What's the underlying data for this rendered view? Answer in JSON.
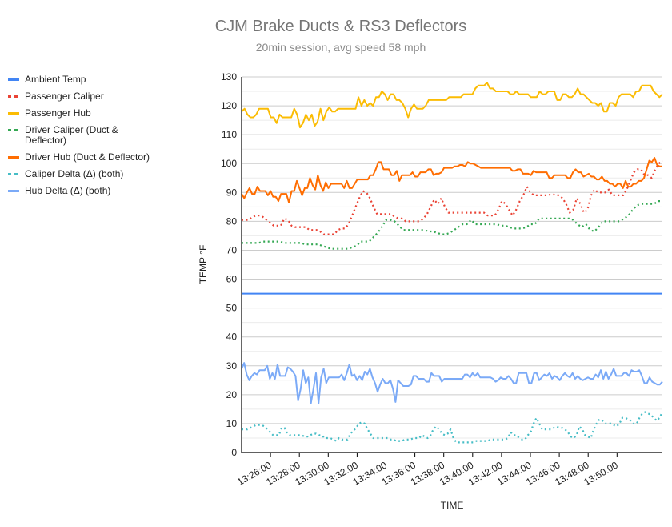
{
  "chart_data": {
    "type": "line",
    "title": "CJM Brake Ducts & RS3 Deflectors",
    "subtitle": "20min session, avg speed 58 mph",
    "xlabel": "TIME",
    "ylabel": "TEMP °F",
    "ylim": [
      0,
      130
    ],
    "yticks": [
      "0",
      "10",
      "20",
      "30",
      "40",
      "50",
      "60",
      "70",
      "80",
      "90",
      "100",
      "110",
      "120",
      "130"
    ],
    "xticks": [
      "13:26:00",
      "13:28:00",
      "13:30:00",
      "13:32:00",
      "13:34:00",
      "13:36:00",
      "13:38:00",
      "13:40:00",
      "13:42:00",
      "13:44:00",
      "13:46:00",
      "13:48:00",
      "13:50:00"
    ],
    "x_start": "13:24:00",
    "x_step_seconds": 15,
    "grid": true,
    "legend_position": "left",
    "series": [
      {
        "name": "Ambient Temp",
        "color": "#4285f4",
        "style": "solid",
        "values": [
          55,
          55,
          55,
          55,
          55,
          55,
          55,
          55,
          55,
          55,
          55,
          55,
          55,
          55,
          55,
          55,
          55,
          55,
          55,
          55,
          55,
          55,
          55,
          55,
          55,
          55,
          55,
          55,
          55,
          55,
          55,
          55,
          55,
          55,
          55,
          55,
          55,
          55,
          55,
          55,
          55,
          55,
          55,
          55,
          55,
          55,
          55,
          55,
          55,
          55,
          55,
          55,
          55,
          55,
          55,
          55,
          55,
          55,
          55,
          55,
          55,
          55,
          55,
          55,
          55,
          55,
          55,
          55,
          55,
          55,
          55,
          55,
          55,
          55,
          55,
          55,
          55,
          55,
          55,
          55,
          55,
          55,
          55,
          55,
          55,
          55,
          55,
          55,
          55,
          55,
          55,
          55,
          55,
          55,
          55,
          55,
          55,
          55,
          55,
          55,
          55,
          55,
          55,
          55,
          55,
          55,
          55,
          55,
          55,
          55,
          55,
          55,
          55,
          55,
          55,
          55,
          55
        ]
      },
      {
        "name": "Passenger Caliper",
        "color": "#ea4335",
        "style": "dotted",
        "values": [
          80.5,
          80.5,
          80.5,
          81.5,
          82,
          82,
          81.5,
          80.5,
          79.5,
          78.5,
          78.5,
          78.5,
          81,
          80.5,
          78.5,
          78,
          78,
          78,
          78,
          77,
          77,
          77,
          76.5,
          75.5,
          75.5,
          75.5,
          75.5,
          77,
          77.5,
          77.5,
          79,
          82,
          85,
          88,
          90.5,
          90,
          88,
          85,
          82.5,
          82.5,
          82.5,
          82.5,
          82.5,
          81.5,
          81,
          81,
          80,
          80,
          80,
          80,
          80,
          81,
          82.5,
          85,
          87.5,
          86,
          88,
          85,
          83,
          83,
          83,
          83,
          83,
          83,
          83,
          83,
          83,
          83,
          83,
          82,
          82,
          82,
          84,
          87,
          86,
          84,
          82,
          84,
          87,
          89,
          92,
          90,
          89,
          89,
          89,
          89,
          89,
          89.5,
          89,
          89,
          88,
          86,
          83,
          84,
          88,
          86,
          83,
          84,
          89,
          91,
          90,
          90,
          90,
          91,
          89,
          89,
          89,
          89,
          91,
          94,
          97,
          98,
          98,
          96,
          96,
          95,
          98,
          100,
          101
        ]
      },
      {
        "name": "Passenger Hub",
        "color": "#fbbc04",
        "style": "solid",
        "values": [
          118,
          119,
          117,
          116,
          116,
          117,
          119,
          119,
          119,
          119,
          116,
          116,
          114,
          117,
          116,
          116,
          116,
          116,
          119,
          117,
          112.5,
          114,
          117,
          115,
          117,
          113,
          114.5,
          119,
          115,
          118,
          119.5,
          118,
          118,
          119,
          119,
          119,
          119,
          119,
          119,
          119,
          123,
          120,
          122,
          120,
          121,
          120,
          123,
          123,
          125,
          124,
          122,
          124,
          124,
          122,
          122,
          121,
          119,
          116,
          119,
          120.5,
          119,
          119,
          119,
          120,
          122,
          122,
          122,
          122,
          122,
          122,
          122,
          123,
          123,
          123,
          123,
          123,
          124,
          124,
          124,
          124,
          126,
          127,
          127,
          127,
          128,
          126,
          126,
          125,
          125,
          125,
          125,
          125,
          124,
          124,
          125,
          124,
          124,
          124,
          124,
          123,
          123,
          123,
          125,
          124,
          124,
          125,
          125,
          125,
          122,
          122,
          124,
          124,
          123,
          123,
          124,
          126,
          124,
          124,
          123,
          122,
          121,
          121,
          120,
          121,
          118,
          118,
          121,
          121,
          120,
          123,
          124,
          124,
          124,
          124,
          123,
          125,
          125,
          127,
          127,
          127,
          127,
          125,
          124,
          123,
          124
        ]
      },
      {
        "name": "Driver Caliper (Duct & Deflector)",
        "color": "#34a853",
        "style": "dotted",
        "values": [
          72.5,
          72.5,
          72.5,
          72.5,
          72.5,
          73,
          73,
          73,
          73,
          73,
          72.5,
          72.5,
          72.5,
          72.5,
          72.5,
          72,
          72,
          72,
          72,
          71.5,
          71,
          70.5,
          70.5,
          70.5,
          70.5,
          70.5,
          71,
          71.5,
          73,
          73,
          73,
          74.5,
          76,
          78,
          80.5,
          80.5,
          80,
          78.5,
          77,
          77,
          77,
          77,
          77,
          77,
          76.5,
          76.5,
          76,
          75.5,
          75.5,
          76,
          77,
          78,
          79,
          79,
          80.5,
          79,
          79,
          79,
          79,
          79,
          79,
          78.5,
          78.5,
          78,
          77.5,
          77.5,
          77.5,
          78,
          79,
          79,
          81,
          81,
          81,
          81,
          81,
          81,
          81,
          81,
          80.5,
          79,
          78,
          79,
          77,
          76.5,
          78,
          80,
          80,
          80,
          80,
          80,
          81,
          82,
          84,
          85.5,
          86,
          86,
          86,
          86,
          87,
          87
        ]
      },
      {
        "name": "Driver Hub (Duct & Deflector)",
        "color": "#ff6d01",
        "style": "solid",
        "values": [
          89.5,
          88,
          90,
          91.5,
          89.5,
          89.5,
          92,
          90.5,
          90.5,
          90.5,
          89,
          90.5,
          88.5,
          88.5,
          87,
          89.5,
          89.5,
          89.5,
          86.5,
          90.5,
          90.5,
          94,
          91.5,
          89,
          91.5,
          91.5,
          95,
          92.5,
          91,
          96,
          92.5,
          90.5,
          93.5,
          91.5,
          93,
          93,
          93,
          93,
          93,
          91.5,
          94,
          91.5,
          91.5,
          93,
          94.5,
          94.5,
          94.5,
          94.5,
          94.5,
          96,
          96,
          98,
          100.5,
          100.5,
          98,
          98,
          98,
          96,
          96,
          97.5,
          94,
          96,
          96,
          96,
          96,
          97,
          95.5,
          95.5,
          97,
          97,
          97,
          98,
          98,
          96,
          96.5,
          96.5,
          97,
          98.5,
          98.5,
          98.5,
          98.5,
          99,
          99,
          99.5,
          99.5,
          99,
          100.5,
          100,
          100,
          99.5,
          99,
          98.5,
          98.5,
          98.5,
          98.5,
          98.5,
          98.5,
          98.5,
          98.5,
          98.5,
          98.5,
          98.5,
          98.5,
          97.5,
          97.5,
          98,
          98,
          96.5,
          96.5,
          96.5,
          96,
          97.5,
          97,
          97,
          97,
          97,
          97,
          95,
          95,
          96,
          96,
          96,
          96,
          96,
          95,
          95,
          97,
          98,
          97,
          97,
          95.5,
          96,
          96.5,
          95.5,
          95.5,
          94.5,
          94.5,
          95.5,
          94,
          94,
          93,
          93,
          92,
          93,
          93,
          91.5,
          94,
          92,
          92,
          93,
          93,
          94,
          94,
          95,
          98,
          101,
          100.5,
          102,
          99.5,
          99,
          99
        ]
      }
    ]
  },
  "extra_series": [
    {
      "name": "Caliper Delta (Δ) (both)",
      "color": "#46bdc6",
      "style": "dotted",
      "values": [
        8,
        8,
        8,
        8.5,
        9,
        9.5,
        9.5,
        9.5,
        9,
        8,
        7,
        6,
        6,
        6,
        8.5,
        8.5,
        6.5,
        6,
        6,
        6,
        6,
        6,
        5.5,
        5.5,
        6,
        6.5,
        6.5,
        6,
        6,
        5,
        5,
        5,
        4.5,
        4,
        5,
        4.5,
        4.5,
        4.5,
        6.5,
        7.5,
        8.5,
        10,
        10.5,
        10,
        8,
        6.5,
        5,
        5,
        5,
        5,
        5,
        5,
        4.5,
        4.5,
        4,
        4,
        4,
        4.5,
        4.5,
        4.5,
        5,
        5,
        5,
        6,
        5.5,
        5,
        6,
        8,
        9,
        8,
        6.5,
        6,
        6.5,
        8,
        5,
        3.5,
        3.5,
        3.5,
        3.5,
        3.5,
        3.5,
        3.5,
        4,
        4,
        4,
        4,
        4,
        4.5,
        4.5,
        4.5,
        4.5,
        4.5,
        4.5,
        5,
        7,
        6,
        6,
        5,
        4.5,
        4.5,
        6,
        7,
        10,
        12,
        10,
        8,
        8,
        8,
        8,
        8.5,
        9,
        8.5,
        8.5,
        8,
        7,
        5.5,
        5,
        6,
        9,
        8,
        6,
        5.5,
        5,
        8,
        10,
        11.5,
        11,
        10,
        10,
        10,
        9.5,
        9,
        10,
        12,
        12,
        11.5,
        11,
        10,
        10,
        12,
        13.5,
        14,
        13.5,
        13,
        12,
        11,
        12,
        14
      ]
    },
    {
      "name": "Hub Delta (Δ) (both)",
      "color": "#7baaf7",
      "style": "solid",
      "values": [
        29,
        31,
        27,
        25,
        26.5,
        27.5,
        27,
        28.5,
        28.5,
        28.5,
        30,
        25.5,
        27.5,
        25.5,
        30.5,
        26.5,
        26.5,
        26.5,
        29.5,
        29,
        28,
        26.5,
        18,
        22,
        28.5,
        24,
        26,
        17,
        22,
        27.5,
        17,
        26,
        29,
        24,
        26,
        26,
        26,
        26,
        26,
        27,
        25,
        27.5,
        30.5,
        26.5,
        27,
        25,
        26.5,
        25,
        28,
        27,
        29,
        26,
        24,
        21,
        23.5,
        25.5,
        24,
        24,
        25,
        22,
        17.5,
        25,
        24,
        23,
        23,
        23,
        23.5,
        26.5,
        26.5,
        25.5,
        25.5,
        25.5,
        24.5,
        24.5,
        27.5,
        26.5,
        26.5,
        26.5,
        24.5,
        25.5,
        25.5,
        25.5,
        25.5,
        25.5,
        25.5,
        25.5,
        25.5,
        27,
        27,
        26,
        27.5,
        26.5,
        27.5,
        26,
        26,
        26,
        26,
        26,
        25.5,
        24.5,
        25,
        26,
        25.5,
        25.5,
        26.5,
        25.5,
        24,
        24,
        27.5,
        27.5,
        27.5,
        27.5,
        24,
        24,
        27.5,
        27.5,
        25,
        26,
        27,
        26.5,
        27.5,
        25.5,
        26.5,
        26,
        25,
        26.5,
        27.5,
        26.5,
        26,
        27.5,
        25.5,
        26.5,
        25.5,
        25,
        25.5,
        26,
        25.5,
        25.5,
        27,
        26,
        28.5,
        25.5,
        28,
        25.5,
        27,
        29,
        26.5,
        26.5,
        26.5,
        27.5,
        27.5,
        26.5,
        28.5,
        28,
        28,
        28.5,
        26.5,
        24,
        24,
        26,
        24.5,
        24,
        23.5,
        23.5,
        24.5
      ]
    }
  ],
  "legend": [
    {
      "label": "Ambient Temp",
      "color": "#4285f4",
      "style": "solid"
    },
    {
      "label": "Passenger Caliper",
      "color": "#ea4335",
      "style": "dotted"
    },
    {
      "label": "Passenger Hub",
      "color": "#fbbc04",
      "style": "solid"
    },
    {
      "label": "Driver Caliper (Duct & Deflector)",
      "color": "#34a853",
      "style": "dotted"
    },
    {
      "label": "Driver Hub (Duct & Deflector)",
      "color": "#ff6d01",
      "style": "solid"
    },
    {
      "label": "Caliper Delta (Δ) (both)",
      "color": "#46bdc6",
      "style": "dotted"
    },
    {
      "label": "Hub Delta (Δ) (both)",
      "color": "#7baaf7",
      "style": "solid"
    }
  ]
}
